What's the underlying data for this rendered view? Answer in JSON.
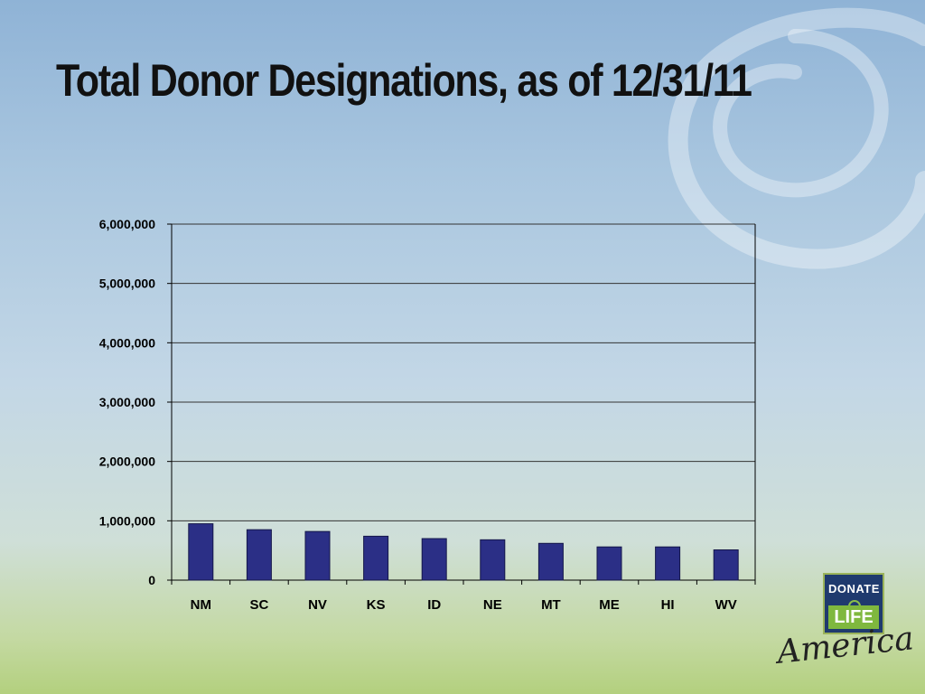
{
  "slide": {
    "title": "Total Donor Designations, as of 12/31/11"
  },
  "logo": {
    "line1": "DONATE",
    "line2": "LIFE",
    "script": "America"
  },
  "colors": {
    "bar_fill": "#2b2f86",
    "bar_stroke": "#15174a",
    "gridline": "#333333"
  },
  "chart_data": {
    "type": "bar",
    "title": "Total Donor Designations, as of 12/31/11",
    "xlabel": "",
    "ylabel": "",
    "categories": [
      "NM",
      "SC",
      "NV",
      "KS",
      "ID",
      "NE",
      "MT",
      "ME",
      "HI",
      "WV"
    ],
    "values": [
      950000,
      850000,
      820000,
      740000,
      700000,
      680000,
      620000,
      560000,
      560000,
      510000
    ],
    "ylim": [
      0,
      6000000
    ],
    "yticks": [
      0,
      1000000,
      2000000,
      3000000,
      4000000,
      5000000,
      6000000
    ],
    "ytick_labels": [
      "0",
      "1,000,000",
      "2,000,000",
      "3,000,000",
      "4,000,000",
      "5,000,000",
      "6,000,000"
    ],
    "grid": true,
    "legend": "none"
  }
}
